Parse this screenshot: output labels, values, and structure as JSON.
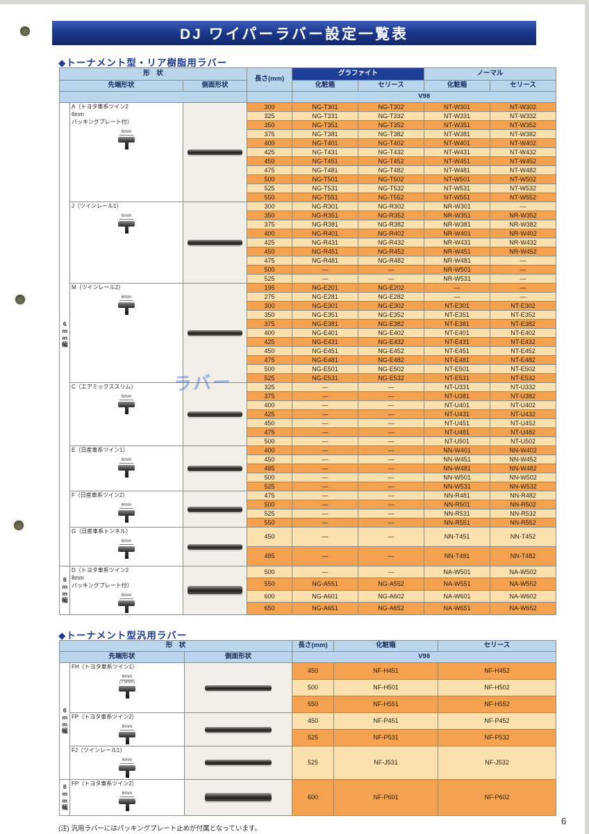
{
  "page": {
    "banner_title": "DJ ワイパーラバー設定一覧表",
    "page_number": "6",
    "footnote": "(注) 汎用ラバーにはパッキングプレート止めが付属となっています。",
    "watermark": "ラバー"
  },
  "colors": {
    "banner_blue": "#1d3a8f",
    "header_blue": "#b9d6ec",
    "graphite_header_blue": "#1e3f96",
    "row_dark_orange": "#f4a24f",
    "row_light_orange": "#fce0ae"
  },
  "section1": {
    "title": "◆トーナメント型・リア樹脂用ラバー",
    "headers": {
      "shape": "形　状",
      "tip": "先端形状",
      "side": "側面形状",
      "length": "長さ(mm)",
      "graphite": "グラファイト",
      "normal": "ノーマル",
      "box": "化粧箱",
      "series": "セリース",
      "box2": "化粧箱",
      "series2": "セリース",
      "v98": "V98"
    },
    "width_labels": [
      "6mm幅",
      "8mm幅"
    ],
    "groups": [
      {
        "label": [
          "A（トヨタ車系ツイン2",
          "6mm",
          "パッキングプレート付）"
        ],
        "size": "6mm",
        "rows": [
          [
            "300",
            "NG-T301",
            "NG-T302",
            "NT-W301",
            "NT-W302"
          ],
          [
            "325",
            "NG-T331",
            "NG-T332",
            "NT-W331",
            "NT-W332"
          ],
          [
            "350",
            "NG-T351",
            "NG-T352",
            "NT-W351",
            "NT-W352"
          ],
          [
            "375",
            "NG-T381",
            "NG-T382",
            "NT-W381",
            "NT-W382"
          ],
          [
            "400",
            "NG-T401",
            "NG-T402",
            "NT-W401",
            "NT-W402"
          ],
          [
            "425",
            "NG-T431",
            "NG-T432",
            "NT-W431",
            "NT-W432"
          ],
          [
            "450",
            "NG-T451",
            "NG-T452",
            "NT-W451",
            "NT-W452"
          ],
          [
            "475",
            "NG-T481",
            "NG-T482",
            "NT-W481",
            "NT-W482"
          ],
          [
            "500",
            "NG-T501",
            "NG-T502",
            "NT-W501",
            "NT-W502"
          ],
          [
            "525",
            "NG-T531",
            "NG-T532",
            "NT-W531",
            "NT-W532"
          ],
          [
            "550",
            "NG-T551",
            "NG-T552",
            "NT-W551",
            "NT-W552"
          ]
        ]
      },
      {
        "label": [
          "J（ツインレール1）"
        ],
        "size": "6mm",
        "rows": [
          [
            "300",
            "NG-R301",
            "NG-R302",
            "NR-W301",
            "—"
          ],
          [
            "350",
            "NG-R351",
            "NG-R352",
            "NR-W351",
            "NR-W352"
          ],
          [
            "375",
            "NG-R381",
            "NG-R382",
            "NR-W381",
            "NR-W382"
          ],
          [
            "400",
            "NG-R401",
            "NG-R402",
            "NR-W401",
            "NR-W402"
          ],
          [
            "425",
            "NG-R431",
            "NG-R432",
            "NR-W431",
            "NR-W432"
          ],
          [
            "450",
            "NG-R451",
            "NG-R452",
            "NR-W451",
            "NR-W452"
          ],
          [
            "475",
            "NG-R481",
            "NG-R482",
            "NR-W481",
            "—"
          ],
          [
            "500",
            "—",
            "—",
            "NR-W501",
            "—"
          ],
          [
            "525",
            "—",
            "—",
            "NR-W531",
            "—"
          ]
        ]
      },
      {
        "label": [
          "M（ツインレール2）"
        ],
        "size": "6mm",
        "rows": [
          [
            "195",
            "NG-E201",
            "NG-E202",
            "—",
            "—"
          ],
          [
            "275",
            "NG-E281",
            "NG-E282",
            "—",
            "—"
          ],
          [
            "300",
            "NG-E301",
            "NG-E302",
            "NT-E301",
            "NT-E302"
          ],
          [
            "350",
            "NG-E351",
            "NG-E352",
            "NT-E351",
            "NT-E352"
          ],
          [
            "375",
            "NG-E381",
            "NG-E382",
            "NT-E381",
            "NT-E382"
          ],
          [
            "400",
            "NG-E401",
            "NG-E402",
            "NT-E401",
            "NT-E402"
          ],
          [
            "425",
            "NG-E431",
            "NG-E432",
            "NT-E431",
            "NT-E432"
          ],
          [
            "450",
            "NG-E451",
            "NG-E452",
            "NT-E451",
            "NT-E452"
          ],
          [
            "475",
            "NG-E481",
            "NG-E482",
            "NT-E481",
            "NT-E482"
          ],
          [
            "500",
            "NG-E501",
            "NG-E502",
            "NT-E501",
            "NT-E502"
          ],
          [
            "525",
            "NG-E531",
            "NG-E532",
            "NT-E531",
            "NT-E532"
          ]
        ]
      },
      {
        "label": [
          "C（エアミックススリム）"
        ],
        "size": "6mm",
        "rows": [
          [
            "325",
            "—",
            "—",
            "NT-U331",
            "NT-U332"
          ],
          [
            "375",
            "—",
            "—",
            "NT-U381",
            "NT-U382"
          ],
          [
            "400",
            "—",
            "—",
            "NT-U401",
            "NT-U402"
          ],
          [
            "425",
            "—",
            "—",
            "NT-U431",
            "NT-U432"
          ],
          [
            "450",
            "—",
            "—",
            "NT-U451",
            "NT-U452"
          ],
          [
            "475",
            "—",
            "—",
            "NT-U481",
            "NT-U482"
          ],
          [
            "500",
            "—",
            "—",
            "NT-U501",
            "NT-U502"
          ]
        ]
      },
      {
        "label": [
          "E（日産車系ツイン1）"
        ],
        "size": "6mm",
        "rows": [
          [
            "400",
            "—",
            "—",
            "NN-W401",
            "NN-W402"
          ],
          [
            "450",
            "—",
            "—",
            "NN-W451",
            "NN-W452"
          ],
          [
            "485",
            "—",
            "—",
            "NN-W481",
            "NN-W482"
          ],
          [
            "500",
            "—",
            "—",
            "NN-W501",
            "NN-W502"
          ],
          [
            "525",
            "—",
            "—",
            "NN-W531",
            "NN-W532"
          ]
        ]
      },
      {
        "label": [
          "F（日産車系ツイン2）"
        ],
        "size": "6mm",
        "rows": [
          [
            "475",
            "—",
            "—",
            "NN-R481",
            "NN-R482"
          ],
          [
            "500",
            "—",
            "—",
            "NN-R501",
            "NN-R502"
          ],
          [
            "525",
            "—",
            "—",
            "NN-R531",
            "NN-R532"
          ],
          [
            "550",
            "—",
            "—",
            "NN-R551",
            "NN-R552"
          ]
        ]
      },
      {
        "label": [
          "G（日産車系トンネル）"
        ],
        "size": "6mm",
        "tall": true,
        "rows": [
          [
            "450",
            "—",
            "—",
            "NN-T451",
            "NN-T452"
          ],
          [
            "485",
            "—",
            "—",
            "NN-T481",
            "NN-T482"
          ]
        ]
      },
      {
        "label": [
          "D（トヨタ車系ツイン2",
          "8mm",
          "パッキングプレート付）"
        ],
        "size": "8mm",
        "rows": [
          [
            "500",
            "—",
            "—",
            "NA-W501",
            "NA-W502"
          ],
          [
            "550",
            "NG-A551",
            "NG-A552",
            "NA-W551",
            "NA-W552"
          ],
          [
            "600",
            "NG-A601",
            "NG-A602",
            "NA-W601",
            "NA-W602"
          ],
          [
            "650",
            "NG-A651",
            "NG-A652",
            "NA-W651",
            "NA-W652"
          ]
        ]
      }
    ]
  },
  "section2": {
    "title": "◆トーナメント型汎用ラバー",
    "headers": {
      "shape": "形　状",
      "tip": "先端形状",
      "side": "側面形状",
      "length": "長さ(mm)",
      "box": "化粧箱",
      "series": "セリース",
      "v98": "V98"
    },
    "width_labels": [
      "6mm幅",
      "8mm幅"
    ],
    "groups": [
      {
        "label": [
          "FH（トヨタ車系ツイン1）"
        ],
        "size": "6mm",
        "sub_size": "(7.5mm)",
        "rows": [
          [
            "450",
            "NF-H451",
            "NF-H452"
          ],
          [
            "500",
            "NF-H501",
            "NF-H502"
          ],
          [
            "550",
            "NF-H551",
            "NF-H552"
          ]
        ]
      },
      {
        "label": [
          "FP（トヨタ車系ツイン2）"
        ],
        "size": "6mm",
        "rows": [
          [
            "450",
            "NF-P451",
            "NF-P452"
          ],
          [
            "525",
            "NF-P531",
            "NF-P532"
          ]
        ]
      },
      {
        "label": [
          "FJ（ツインレール1）"
        ],
        "size": "6mm",
        "rows": [
          [
            "525",
            "NF-J531",
            "NF-J532"
          ]
        ]
      },
      {
        "label": [
          "FP（トヨタ車系ツイン2）"
        ],
        "size": "8mm",
        "rows": [
          [
            "600",
            "NF-P601",
            "NF-P602"
          ]
        ]
      }
    ]
  }
}
